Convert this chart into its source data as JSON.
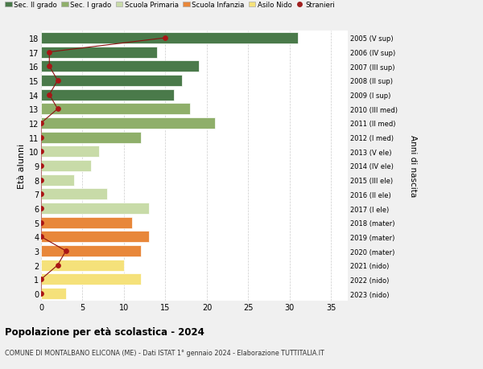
{
  "ages": [
    0,
    1,
    2,
    3,
    4,
    5,
    6,
    7,
    8,
    9,
    10,
    11,
    12,
    13,
    14,
    15,
    16,
    17,
    18
  ],
  "right_labels": [
    "2023 (nido)",
    "2022 (nido)",
    "2021 (nido)",
    "2020 (mater)",
    "2019 (mater)",
    "2018 (mater)",
    "2017 (I ele)",
    "2016 (II ele)",
    "2015 (III ele)",
    "2014 (IV ele)",
    "2013 (V ele)",
    "2012 (I med)",
    "2011 (II med)",
    "2010 (III med)",
    "2009 (I sup)",
    "2008 (II sup)",
    "2007 (III sup)",
    "2006 (IV sup)",
    "2005 (V sup)"
  ],
  "bar_values": [
    3,
    12,
    10,
    12,
    13,
    11,
    13,
    8,
    4,
    6,
    7,
    12,
    21,
    18,
    16,
    17,
    19,
    14,
    31
  ],
  "bar_colors": [
    "#f5e17a",
    "#f5e17a",
    "#f5e17a",
    "#e8873a",
    "#e8873a",
    "#e8873a",
    "#c8dba8",
    "#c8dba8",
    "#c8dba8",
    "#c8dba8",
    "#c8dba8",
    "#8faf6a",
    "#8faf6a",
    "#8faf6a",
    "#4a7a4a",
    "#4a7a4a",
    "#4a7a4a",
    "#4a7a4a",
    "#4a7a4a"
  ],
  "stranieri_x": [
    0,
    0,
    2,
    3,
    0,
    0,
    0,
    0,
    0,
    0,
    0,
    0,
    0,
    2,
    1,
    2,
    1,
    1,
    15
  ],
  "legend_labels": [
    "Sec. II grado",
    "Sec. I grado",
    "Scuola Primaria",
    "Scuola Infanzia",
    "Asilo Nido",
    "Stranieri"
  ],
  "legend_colors": [
    "#4a7a4a",
    "#8faf6a",
    "#c8dba8",
    "#e8873a",
    "#f5e17a",
    "#a02020"
  ],
  "title": "Popolazione per età scolastica - 2024",
  "subtitle": "COMUNE DI MONTALBANO ELICONA (ME) - Dati ISTAT 1° gennaio 2024 - Elaborazione TUTTITALIA.IT",
  "ylabel_left": "Età alunni",
  "ylabel_right": "Anni di nascita",
  "background_color": "#f0f0f0",
  "plot_background": "#ffffff",
  "grid_color": "#cccccc"
}
